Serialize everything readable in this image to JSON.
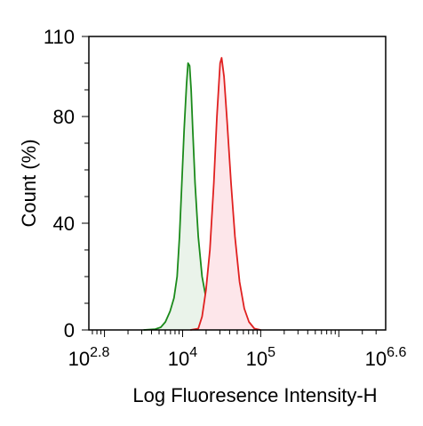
{
  "chart_data": {
    "type": "area",
    "xlabel": "Log Fluoresence Intensity-H",
    "ylabel": "Count  (%)",
    "x_scale": "log10",
    "xlim": [
      2.8,
      6.6
    ],
    "ylim": [
      0,
      110
    ],
    "y_ticks": [
      {
        "value": 0,
        "label": "0"
      },
      {
        "value": 40,
        "label": "40"
      },
      {
        "value": 80,
        "label": "80"
      },
      {
        "value": 110,
        "label": "110"
      }
    ],
    "x_ticks": [
      {
        "exp": 2.8,
        "base": "10",
        "sup": "2.8"
      },
      {
        "exp": 4,
        "base": "10",
        "sup": "4"
      },
      {
        "exp": 5,
        "base": "10",
        "sup": "5"
      },
      {
        "exp": 6.6,
        "base": "10",
        "sup": "6.6"
      }
    ],
    "grid": false,
    "series": [
      {
        "stroke": "#1a8a1a",
        "fill": "#eaf3ea",
        "points": [
          [
            3.5,
            0
          ],
          [
            3.65,
            0.3
          ],
          [
            3.72,
            1
          ],
          [
            3.78,
            3
          ],
          [
            3.84,
            7
          ],
          [
            3.89,
            12
          ],
          [
            3.93,
            20
          ],
          [
            3.96,
            35
          ],
          [
            3.99,
            55
          ],
          [
            4.02,
            75
          ],
          [
            4.05,
            92
          ],
          [
            4.07,
            100
          ],
          [
            4.09,
            99
          ],
          [
            4.11,
            90
          ],
          [
            4.13,
            75
          ],
          [
            4.16,
            55
          ],
          [
            4.2,
            35
          ],
          [
            4.25,
            20
          ],
          [
            4.3,
            12
          ],
          [
            4.36,
            5
          ],
          [
            4.42,
            1.5
          ],
          [
            4.48,
            0.4
          ],
          [
            4.55,
            0
          ]
        ]
      },
      {
        "stroke": "#e02020",
        "fill": "#fde6ea",
        "points": [
          [
            4.1,
            0
          ],
          [
            4.2,
            0.5
          ],
          [
            4.25,
            5
          ],
          [
            4.3,
            15
          ],
          [
            4.35,
            30
          ],
          [
            4.4,
            55
          ],
          [
            4.44,
            80
          ],
          [
            4.48,
            100
          ],
          [
            4.5,
            102
          ],
          [
            4.53,
            95
          ],
          [
            4.57,
            78
          ],
          [
            4.62,
            55
          ],
          [
            4.67,
            35
          ],
          [
            4.73,
            18
          ],
          [
            4.79,
            8
          ],
          [
            4.85,
            3
          ],
          [
            4.92,
            0.5
          ],
          [
            5.0,
            0
          ]
        ]
      }
    ]
  }
}
